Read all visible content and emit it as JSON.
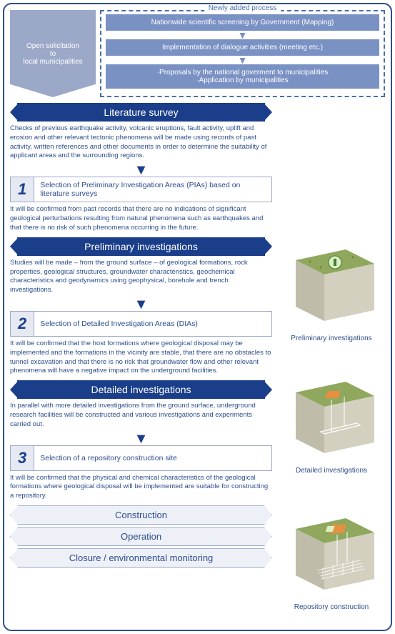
{
  "new_process_label": "Newly added process",
  "open_solicitation": "Open solicitation<br>to<br>local municipalities",
  "proc": {
    "a": "Nationwide scientific screening by Government (Mapping)",
    "b": "Implementation of dialogue activities (meeting etc.)",
    "c": "·Proposals by the national goverment to municipalities<br>·Application by municipalities"
  },
  "phases": {
    "lit": {
      "title": "Literature survey",
      "text": "Checks of previous earthquake activity, volcanic eruptions, fault activity, uplift and erosion and other relevant tectonic phenomena will be made using records of past activity, written references and other documents in order to determine the suitability of applicant areas and the surrounding regions."
    },
    "sel1": {
      "num": "1",
      "label": "Selection of Preliminary Investigation Areas (PIAs) based on literature surveys",
      "text": "It will be confirmed from past records that there are no indications of significant geological perturbations resulting from natural phenomena such as earthquakes and that there is no risk of such phenomena occurring in the future."
    },
    "pre": {
      "title": "Preliminary investigations",
      "text": "Studies will be made – from the ground surface – of geological formations, rock properties, geological structures, groundwater characteristics, geochemical characteristics and geodynamics using geophysical, borehole and trench investigations."
    },
    "sel2": {
      "num": "2",
      "label": "Selection of Detailed Investigation Areas (DIAs)",
      "text": "It will be confirmed that the host formations where geological disposal may be implemented and the formations in the vicinity are stable, that there are no obstacles to tunnel excavation and that there is no risk that groundwater flow and other relevant phenomena will have a negative impact on the underground facilities."
    },
    "det": {
      "title": "Detailed investigations",
      "text": "In parallel with more detailed investigations from the ground surface, underground research facilities will be constructed and various investigations and experiments carried out."
    },
    "sel3": {
      "num": "3",
      "label": "Selection of a repository construction site",
      "text": "It will be confirmed that the physical and chemical characteristics of the geological formations where geological disposal will be implemented are suitable for constructing a repository."
    }
  },
  "final": {
    "a": "Construction",
    "b": "Operation",
    "c": "Closure / environmental monitoring"
  },
  "captions": {
    "a": "Preliminary investigations",
    "b": "Detailed investigations",
    "c": "Repository construction"
  },
  "colors": {
    "phase_bg": "#1b3e8a",
    "text": "#2c4d8c",
    "proc_bg": "#7a91c4",
    "sol_bg": "#9ba8c8",
    "sel_bg": "#e6e9f2",
    "final_bg": "#edf0f6",
    "ground_top": "#8fa85e",
    "ground_side": "#d4d0c0",
    "ground_front": "#c0bcaa"
  }
}
